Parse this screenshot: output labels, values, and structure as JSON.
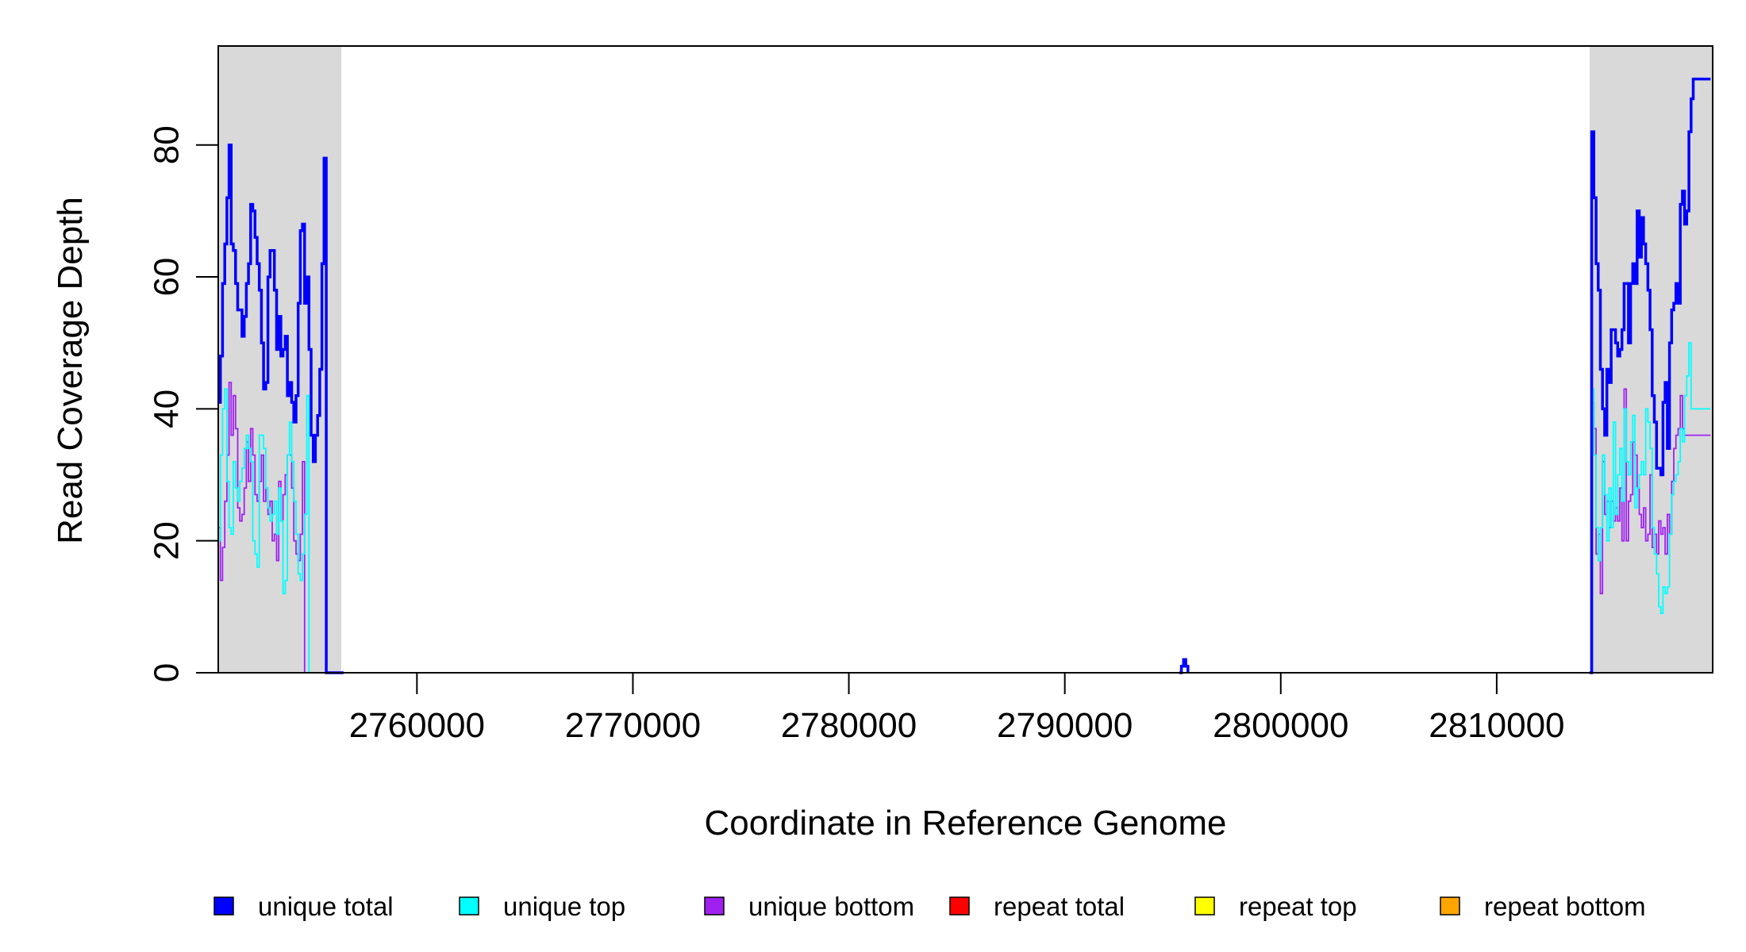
{
  "chart_data": {
    "type": "line",
    "xlabel": "Coordinate in Reference Genome",
    "ylabel": "Read Coverage Depth",
    "xlim": [
      2750800,
      2820000
    ],
    "ylim": [
      0,
      95
    ],
    "x_ticks": [
      2760000,
      2770000,
      2780000,
      2790000,
      2800000,
      2810000
    ],
    "x_tick_labels": [
      "2760000",
      "2770000",
      "2780000",
      "2790000",
      "2800000",
      "2810000"
    ],
    "y_ticks": [
      0,
      20,
      40,
      60,
      80
    ],
    "y_tick_labels": [
      "0",
      "20",
      "40",
      "60",
      "80"
    ],
    "shaded_regions": [
      {
        "from": 2750800,
        "to": 2756500,
        "color": "#d9d9d9"
      },
      {
        "from": 2814300,
        "to": 2820000,
        "color": "#d9d9d9"
      }
    ],
    "legend": [
      {
        "label": "unique total",
        "color": "#0000ff"
      },
      {
        "label": "unique top",
        "color": "#00ffff"
      },
      {
        "label": "unique bottom",
        "color": "#a020f0"
      },
      {
        "label": "repeat total",
        "color": "#ff0000"
      },
      {
        "label": "repeat top",
        "color": "#ffff00"
      },
      {
        "label": "repeat bottom",
        "color": "#ffa500"
      }
    ],
    "series": [
      {
        "name": "unique total",
        "color": "#0000ff",
        "width": 3.5,
        "segments": [
          {
            "x": [
              2750800,
              2750900,
              2751000,
              2751100,
              2751200,
              2751300,
              2751400,
              2751500,
              2751600,
              2751700,
              2751800,
              2751900,
              2752000,
              2752100,
              2752200,
              2752300,
              2752400,
              2752500,
              2752600,
              2752700,
              2752800,
              2752900,
              2753000,
              2753100,
              2753200,
              2753300,
              2753400,
              2753500,
              2753600,
              2753700,
              2753800,
              2753900,
              2754000,
              2754100,
              2754200,
              2754300,
              2754400,
              2754500,
              2754600,
              2754700,
              2754800,
              2754900,
              2755000,
              2755100,
              2755200,
              2755300,
              2755400,
              2755500,
              2755600,
              2755700,
              2755800,
              2755900,
              2756000,
              2756100,
              2756200,
              2756300,
              2756400,
              2756500,
              2756600
            ],
            "y": [
              41,
              48,
              59,
              65,
              72,
              80,
              65,
              64,
              59,
              55,
              55,
              51,
              54,
              59,
              62,
              71,
              70,
              66,
              62,
              58,
              50,
              43,
              44,
              60,
              64,
              64,
              58,
              49,
              54,
              48,
              49,
              51,
              42,
              44,
              41,
              38,
              42,
              56,
              67,
              68,
              56,
              60,
              49,
              36,
              32,
              36,
              39,
              46,
              62,
              78,
              0,
              0,
              0,
              0,
              0,
              0,
              0,
              0,
              0
            ]
          },
          {
            "x": [
              2795300,
              2795400,
              2795500,
              2795600,
              2795700
            ],
            "y": [
              0,
              1,
              2,
              1,
              0
            ]
          },
          {
            "x": [
              2814300,
              2814400,
              2814500,
              2814600,
              2814700,
              2814800,
              2814900,
              2815000,
              2815100,
              2815200,
              2815300,
              2815400,
              2815500,
              2815600,
              2815700,
              2815800,
              2815900,
              2816000,
              2816100,
              2816200,
              2816300,
              2816400,
              2816500,
              2816600,
              2816700,
              2816800,
              2816900,
              2817000,
              2817100,
              2817200,
              2817300,
              2817400,
              2817500,
              2817600,
              2817700,
              2817800,
              2817900,
              2818000,
              2818100,
              2818200,
              2818300,
              2818400,
              2818500,
              2818600,
              2818700,
              2818800,
              2818900,
              2819000,
              2819100,
              2819200,
              2819300,
              2819400,
              2819500,
              2819600,
              2819700,
              2819800,
              2819900
            ],
            "y": [
              0,
              82,
              72,
              62,
              58,
              46,
              40,
              36,
              46,
              44,
              52,
              52,
              50,
              48,
              49,
              52,
              59,
              59,
              50,
              59,
              62,
              59,
              70,
              63,
              69,
              65,
              62,
              58,
              52,
              42,
              38,
              31,
              31,
              30,
              41,
              44,
              34,
              50,
              55,
              56,
              59,
              56,
              71,
              73,
              68,
              70,
              82,
              87,
              90,
              90,
              90,
              90,
              90,
              90,
              90,
              90,
              90
            ]
          }
        ]
      },
      {
        "name": "unique top",
        "color": "#00ffff",
        "width": 1.8,
        "segments": [
          {
            "x": [
              2750800,
              2750900,
              2751000,
              2751100,
              2751200,
              2751300,
              2751400,
              2751500,
              2751600,
              2751700,
              2751800,
              2751900,
              2752000,
              2752100,
              2752200,
              2752300,
              2752400,
              2752500,
              2752600,
              2752700,
              2752800,
              2752900,
              2753000,
              2753100,
              2753200,
              2753300,
              2753400,
              2753500,
              2753600,
              2753700,
              2753800,
              2753900,
              2754000,
              2754100,
              2754200,
              2754300,
              2754400,
              2754500,
              2754600,
              2754700,
              2754800,
              2754900,
              2755000,
              2755100,
              2755200,
              2755300,
              2755400,
              2755500,
              2755600,
              2755700,
              2755800
            ],
            "y": [
              20,
              33,
              40,
              43,
              29,
              22,
              21,
              32,
              28,
              26,
              29,
              31,
              34,
              36,
              34,
              32,
              20,
              18,
              16,
              36,
              36,
              34,
              28,
              25,
              23,
              24,
              26,
              21,
              28,
              23,
              12,
              14,
              33,
              38,
              32,
              26,
              21,
              15,
              14,
              18,
              24,
              42,
              0,
              0,
              0,
              0,
              0,
              0,
              0,
              0,
              0
            ]
          },
          {
            "x": [
              2795300,
              2795400,
              2795500,
              2795600,
              2795700
            ],
            "y": [
              0,
              1,
              1,
              1,
              0
            ]
          },
          {
            "x": [
              2814300,
              2814400,
              2814500,
              2814600,
              2814700,
              2814800,
              2814900,
              2815000,
              2815100,
              2815200,
              2815300,
              2815400,
              2815500,
              2815600,
              2815700,
              2815800,
              2815900,
              2816000,
              2816100,
              2816200,
              2816300,
              2816400,
              2816500,
              2816600,
              2816700,
              2816800,
              2816900,
              2817000,
              2817100,
              2817200,
              2817300,
              2817400,
              2817500,
              2817600,
              2817700,
              2817800,
              2817900,
              2818000,
              2818100,
              2818200,
              2818300,
              2818400,
              2818500,
              2818600,
              2818700,
              2818800,
              2818900,
              2819000,
              2819100,
              2819200,
              2819300,
              2819400,
              2819500,
              2819600,
              2819700,
              2819800,
              2819900
            ],
            "y": [
              0,
              43,
              33,
              22,
              17,
              22,
              33,
              27,
              20,
              28,
              22,
              38,
              24,
              30,
              34,
              26,
              40,
              32,
              30,
              35,
              39,
              25,
              28,
              30,
              32,
              30,
              40,
              38,
              34,
              22,
              18,
              15,
              10,
              9,
              13,
              12,
              13,
              21,
              27,
              29,
              30,
              32,
              37,
              35,
              42,
              45,
              50,
              40,
              40,
              40,
              40,
              40,
              40,
              40,
              40,
              40,
              40
            ]
          }
        ]
      },
      {
        "name": "unique bottom",
        "color": "#a020f0",
        "width": 1.8,
        "segments": [
          {
            "x": [
              2750800,
              2750900,
              2751000,
              2751100,
              2751200,
              2751300,
              2751400,
              2751500,
              2751600,
              2751700,
              2751800,
              2751900,
              2752000,
              2752100,
              2752200,
              2752300,
              2752400,
              2752500,
              2752600,
              2752700,
              2752800,
              2752900,
              2753000,
              2753100,
              2753200,
              2753300,
              2753400,
              2753500,
              2753600,
              2753700,
              2753800,
              2753900,
              2754000,
              2754100,
              2754200,
              2754300,
              2754400,
              2754500,
              2754600,
              2754700,
              2754800,
              2754900,
              2755000,
              2755100,
              2755200,
              2755300,
              2755400,
              2755500,
              2755600,
              2755700,
              2755800
            ],
            "y": [
              22,
              14,
              19,
              26,
              33,
              44,
              36,
              42,
              37,
              25,
              23,
              24,
              28,
              35,
              29,
              37,
              33,
              27,
              26,
              29,
              33,
              26,
              28,
              24,
              26,
              20,
              21,
              17,
              29,
              23,
              27,
              30,
              33,
              33,
              28,
              20,
              18,
              17,
              21,
              32,
              0,
              0,
              0,
              0,
              0,
              0,
              0,
              0,
              0,
              0,
              0
            ]
          },
          {
            "x": [
              2814300,
              2814400,
              2814500,
              2814600,
              2814700,
              2814800,
              2814900,
              2815000,
              2815100,
              2815200,
              2815300,
              2815400,
              2815500,
              2815600,
              2815700,
              2815800,
              2815900,
              2816000,
              2816100,
              2816200,
              2816300,
              2816400,
              2816500,
              2816600,
              2816700,
              2816800,
              2816900,
              2817000,
              2817100,
              2817200,
              2817300,
              2817400,
              2817500,
              2817600,
              2817700,
              2817800,
              2817900,
              2818000,
              2818100,
              2818200,
              2818300,
              2818400,
              2818500,
              2818600,
              2818700,
              2818800,
              2818900,
              2819000,
              2819100,
              2819200,
              2819300,
              2819400,
              2819500,
              2819600,
              2819700,
              2819800,
              2819900
            ],
            "y": [
              0,
              41,
              37,
              18,
              21,
              12,
              32,
              24,
              26,
              22,
              26,
              23,
              25,
              23,
              28,
              20,
              43,
              20,
              26,
              27,
              35,
              33,
              28,
              24,
              22,
              25,
              20,
              21,
              30,
              19,
              21,
              18,
              23,
              21,
              22,
              18,
              24,
              21,
              29,
              34,
              36,
              37,
              42,
              37,
              36,
              36,
              36,
              36,
              36,
              36,
              36,
              36,
              36,
              36,
              36,
              36,
              36
            ]
          }
        ]
      },
      {
        "name": "repeat total",
        "color": "#ff0000",
        "width": 1.5,
        "segments": [
          {
            "x": [
              2750800,
              2756500
            ],
            "y": [
              0,
              0
            ]
          },
          {
            "x": [
              2814300,
              2820000
            ],
            "y": [
              0,
              0
            ]
          }
        ]
      },
      {
        "name": "repeat top",
        "color": "#ffff00",
        "width": 1.5,
        "segments": [
          {
            "x": [
              2750800,
              2756500
            ],
            "y": [
              0,
              0
            ]
          },
          {
            "x": [
              2814300,
              2820000
            ],
            "y": [
              0,
              0
            ]
          }
        ]
      },
      {
        "name": "repeat bottom",
        "color": "#ffa500",
        "width": 2,
        "segments": [
          {
            "x": [
              2750800,
              2756500
            ],
            "y": [
              0,
              0
            ]
          },
          {
            "x": [
              2814300,
              2820000
            ],
            "y": [
              0,
              0
            ]
          }
        ]
      }
    ]
  }
}
